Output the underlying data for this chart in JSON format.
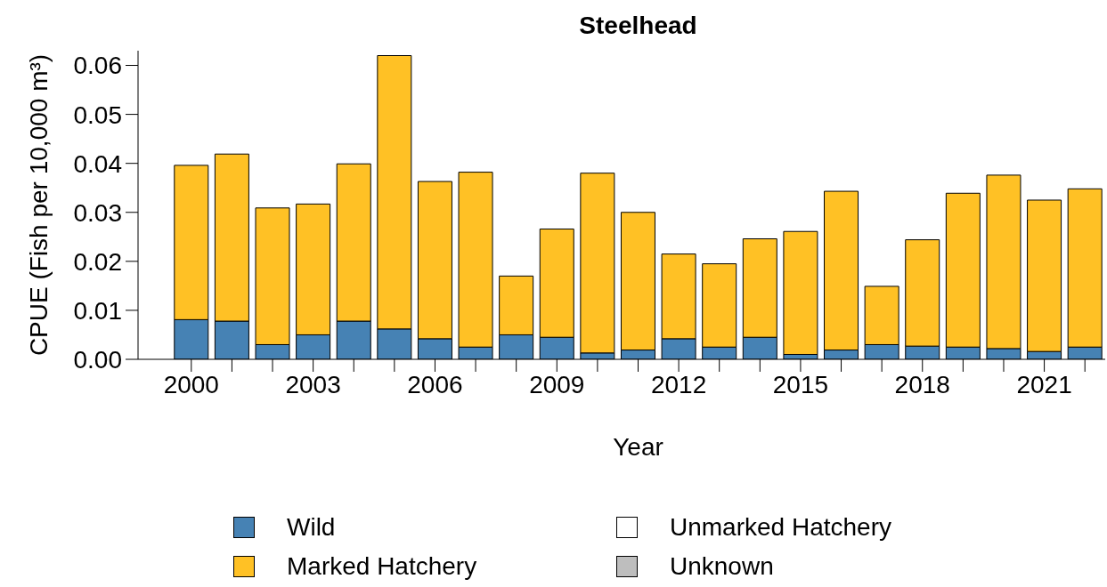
{
  "chart_data": {
    "type": "bar",
    "title": "Steelhead",
    "xlabel": "Year",
    "ylabel": "CPUE (Fish per 10,000 m³)",
    "categories": [
      "2000",
      null,
      null,
      "2003",
      null,
      null,
      "2006",
      null,
      null,
      "2009",
      null,
      null,
      "2012",
      null,
      null,
      "2015",
      null,
      null,
      "2018",
      null,
      null,
      "2021",
      null
    ],
    "series": [
      {
        "name": "Wild",
        "color": "#4682b4",
        "values": [
          0.0081,
          0.0078,
          0.003,
          0.005,
          0.0078,
          0.0062,
          0.0042,
          0.0025,
          0.005,
          0.0045,
          0.0013,
          0.0019,
          0.0042,
          0.0025,
          0.0045,
          0.001,
          0.0019,
          0.003,
          0.0027,
          0.0025,
          0.0022,
          0.0016,
          0.0025
        ]
      },
      {
        "name": "Marked Hatchery",
        "color": "#ffc125",
        "values": [
          0.0315,
          0.0341,
          0.0279,
          0.0267,
          0.0321,
          0.0558,
          0.0321,
          0.0357,
          0.012,
          0.0221,
          0.0367,
          0.0281,
          0.0173,
          0.017,
          0.0201,
          0.0251,
          0.0324,
          0.0119,
          0.0217,
          0.0314,
          0.0354,
          0.0309,
          0.0323
        ]
      },
      {
        "name": "Unmarked Hatchery",
        "color": "#ffffff",
        "values": [
          0,
          0,
          0,
          0,
          0,
          0,
          0,
          0,
          0,
          0,
          0,
          0,
          0,
          0,
          0,
          0,
          0,
          0,
          0,
          0,
          0,
          0,
          0
        ]
      },
      {
        "name": "Unknown",
        "color": "#bebebe",
        "values": [
          0,
          0,
          0,
          0,
          0,
          0,
          0,
          0,
          0,
          0,
          0,
          0,
          0,
          0,
          0,
          0,
          0,
          0,
          0,
          0,
          0,
          0,
          0
        ]
      }
    ],
    "stacked": true,
    "ylim": [
      0,
      0.063
    ],
    "yticks": [
      {
        "value": 0,
        "label": "0.00"
      },
      0.01,
      0.02,
      0.03,
      0.04,
      0.05,
      0.06
    ],
    "legend": "bottom"
  }
}
